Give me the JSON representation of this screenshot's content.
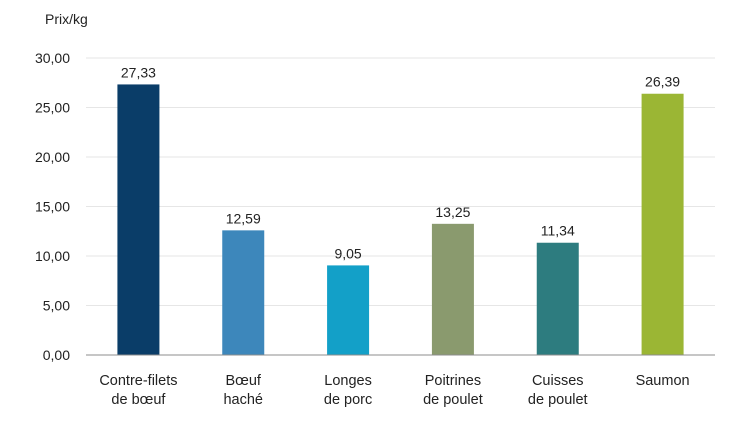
{
  "chart_data": {
    "type": "bar",
    "ylabel": "Prix/kg",
    "ylim": [
      0,
      30
    ],
    "yticks": [
      "0,00",
      "5,00",
      "10,00",
      "15,00",
      "20,00",
      "25,00",
      "30,00"
    ],
    "grid": true,
    "categories": [
      [
        "Contre-filets",
        "de bœuf"
      ],
      [
        "Bœuf",
        "haché"
      ],
      [
        "Longes",
        "de porc"
      ],
      [
        "Poitrines",
        "de poulet"
      ],
      [
        "Cuisses",
        "de poulet"
      ],
      [
        "Saumon"
      ]
    ],
    "values": [
      27.33,
      12.59,
      9.05,
      13.25,
      11.34,
      26.39
    ],
    "value_labels": [
      "27,33",
      "12,59",
      "9,05",
      "13,25",
      "11,34",
      "26,39"
    ],
    "colors": [
      "#0a3d68",
      "#3d87bb",
      "#13a0c8",
      "#8a9a6e",
      "#2d7c7f",
      "#9bb634"
    ]
  }
}
